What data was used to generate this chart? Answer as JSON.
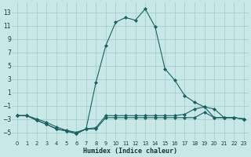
{
  "xlabel": "Humidex (Indice chaleur)",
  "bg_color": "#c8e8e8",
  "grid_color": "#a8cece",
  "line_color": "#1a6060",
  "x": [
    0,
    1,
    2,
    3,
    4,
    5,
    6,
    7,
    8,
    9,
    10,
    11,
    12,
    13,
    14,
    15,
    16,
    17,
    18,
    19,
    20,
    21,
    22,
    23
  ],
  "main_y": [
    -2.5,
    -2.5,
    -3.0,
    -3.5,
    -4.2,
    -4.7,
    -5.0,
    -4.5,
    2.5,
    8.0,
    11.5,
    12.2,
    11.8,
    13.5,
    10.8,
    4.5,
    2.8,
    0.5,
    -0.5,
    -1.2,
    -1.5,
    -2.8,
    -2.8,
    -3.0
  ],
  "mid_y": [
    -2.5,
    -2.5,
    -3.2,
    -3.8,
    -4.5,
    -4.8,
    -5.2,
    -4.5,
    -4.3,
    -2.5,
    -2.5,
    -2.5,
    -2.5,
    -2.5,
    -2.5,
    -2.5,
    -2.5,
    -2.3,
    -1.5,
    -1.2,
    -2.8,
    -2.8,
    -2.8,
    -3.0
  ],
  "low_y": [
    -2.5,
    -2.5,
    -3.2,
    -3.8,
    -4.5,
    -4.8,
    -5.2,
    -4.5,
    -4.5,
    -2.8,
    -2.8,
    -2.8,
    -2.8,
    -2.8,
    -2.8,
    -2.8,
    -2.8,
    -2.8,
    -2.8,
    -2.0,
    -2.8,
    -2.8,
    -2.8,
    -3.0
  ],
  "xlim": [
    -0.5,
    23.5
  ],
  "ylim": [
    -6.2,
    14.5
  ],
  "yticks": [
    -5,
    -3,
    -1,
    1,
    3,
    5,
    7,
    9,
    11,
    13
  ],
  "xticks": [
    0,
    1,
    2,
    3,
    4,
    5,
    6,
    7,
    8,
    9,
    10,
    11,
    12,
    13,
    14,
    15,
    16,
    17,
    18,
    19,
    20,
    21,
    22,
    23
  ],
  "xlabel_fontsize": 6.0,
  "tick_fontsize": 5.5
}
